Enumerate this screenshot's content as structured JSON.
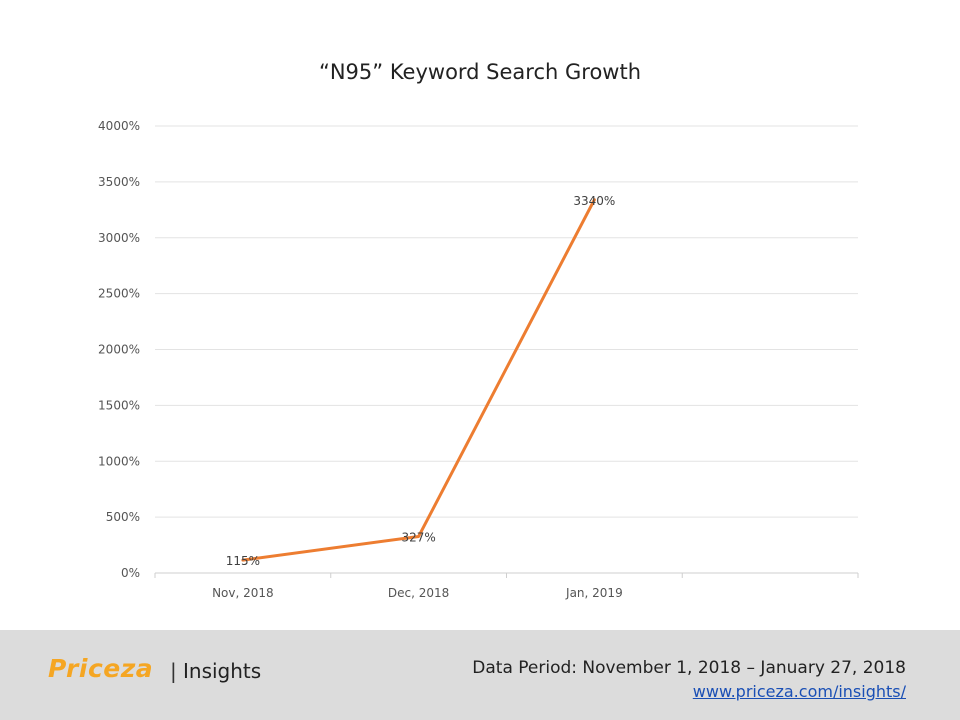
{
  "chart_data": {
    "type": "line",
    "title": "“N95” Keyword Search Growth",
    "xlabel": "",
    "ylabel": "",
    "categories": [
      "Nov, 2018",
      "Dec, 2018",
      "Jan, 2019"
    ],
    "slot_count": 4,
    "series": [
      {
        "values": [
          115,
          327,
          3340
        ],
        "data_labels": [
          "115%",
          "327%",
          "3340%"
        ],
        "color": "#ed7d31"
      }
    ],
    "ylim": [
      0,
      4000
    ],
    "yticks": [
      0,
      500,
      1000,
      1500,
      2000,
      2500,
      3000,
      3500,
      4000
    ],
    "ytick_labels": [
      "0%",
      "500%",
      "1000%",
      "1500%",
      "2000%",
      "2500%",
      "3000%",
      "3500%",
      "4000%"
    ],
    "grid": true,
    "gridline_color": "#e3e3e3"
  },
  "footer": {
    "brand": "Priceza",
    "separator": "|",
    "brand_sub": "Insights",
    "brand_color": "#f5a623",
    "period": "Data Period: November 1, 2018 – January 27, 2018",
    "link": "www.priceza.com/insights/"
  }
}
